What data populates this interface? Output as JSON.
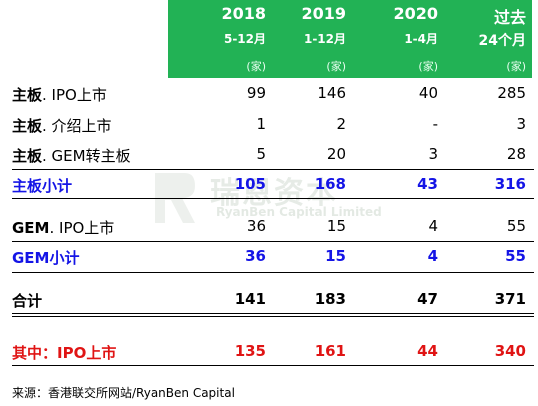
{
  "columns": [
    {
      "year": "2018",
      "period": "5-12月",
      "unit": "(家)"
    },
    {
      "year": "2019",
      "period": "1-12月",
      "unit": "(家)"
    },
    {
      "year": "2020",
      "period": "1-4月",
      "unit": "(家)"
    },
    {
      "year": "过去",
      "period": "24个月",
      "unit": "(家)"
    }
  ],
  "rows": [
    {
      "label_bold": "主板",
      "label_rest": ". IPO上市",
      "values": [
        "99",
        "146",
        "40",
        "285"
      ],
      "style": "normal"
    },
    {
      "label_bold": "主板",
      "label_rest": ". 介绍上市",
      "values": [
        "1",
        "2",
        "-",
        "3"
      ],
      "style": "normal"
    },
    {
      "label_bold": "主板",
      "label_rest": ". GEM转主板",
      "values": [
        "5",
        "20",
        "3",
        "28"
      ],
      "style": "normal"
    },
    {
      "label_bold": "主板小计",
      "label_rest": "",
      "values": [
        "105",
        "168",
        "43",
        "316"
      ],
      "style": "blue"
    },
    {
      "label_bold": "GEM",
      "label_rest": ". IPO上市",
      "values": [
        "36",
        "15",
        "4",
        "55"
      ],
      "style": "normal"
    },
    {
      "label_bold": "GEM小计",
      "label_rest": "",
      "values": [
        "36",
        "15",
        "4",
        "55"
      ],
      "style": "blue"
    },
    {
      "label_bold": "合计",
      "label_rest": "",
      "values": [
        "141",
        "183",
        "47",
        "371"
      ],
      "style": "bold"
    },
    {
      "label_bold": "其中：IPO上市",
      "label_rest": "",
      "values": [
        "135",
        "161",
        "44",
        "340"
      ],
      "style": "red"
    }
  ],
  "watermark": {
    "cn": "瑞恩资本",
    "en": "RyanBen Capital Limited"
  },
  "source": "来源：香港联交所网站/RyanBen Capital",
  "colors": {
    "header_bg": "#22b255",
    "subtotal": "#1414e6",
    "ipo_total": "#e01414"
  }
}
